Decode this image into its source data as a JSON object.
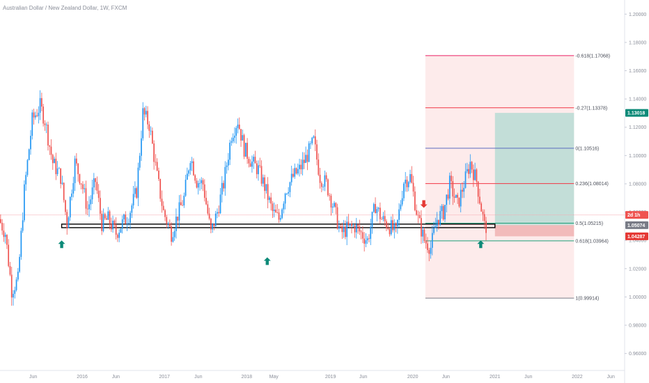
{
  "header": {
    "symbol_title": "Australian Dollar / New Zealand Dollar, 1W, FXCM"
  },
  "colors": {
    "up": "#2196f3",
    "down": "#ef5350",
    "fib_zone": "#fce4e4",
    "profit_zone": "#b9dcd5",
    "loss_zone": "#f0b3b3",
    "arrow_up": "#0d8a78",
    "arrow_down": "#e53935",
    "last_price_badge": "#0d8a78",
    "countdown_badge": "#ef5350",
    "entry_badge": "#787b86",
    "stop_badge": "#e53935",
    "price_line": "#f6a8ae"
  },
  "chart_data": {
    "type": "candlestick",
    "ylim": [
      0.948,
      1.21
    ],
    "xlim": [
      "2015-01-05",
      "2022-08-01"
    ],
    "y_ticks": [
      "1.20000",
      "1.18000",
      "1.16000",
      "1.14000",
      "1.12000",
      "1.10000",
      "1.08000",
      "1.06000",
      "1.04000",
      "1.02000",
      "1.00000",
      "0.98000",
      "0.96000"
    ],
    "y_tick_values": [
      1.2,
      1.18,
      1.16,
      1.14,
      1.12,
      1.1,
      1.08,
      1.06,
      1.04,
      1.02,
      1.0,
      0.98,
      0.96
    ],
    "x_ticks": [
      {
        "label": "Jun",
        "date": "2015-06-01"
      },
      {
        "label": "2016",
        "date": "2016-01-04"
      },
      {
        "label": "Jun",
        "date": "2016-06-01"
      },
      {
        "label": "2017",
        "date": "2017-01-02"
      },
      {
        "label": "Jun",
        "date": "2017-06-01"
      },
      {
        "label": "2018",
        "date": "2018-01-01"
      },
      {
        "label": "May",
        "date": "2018-05-01"
      },
      {
        "label": "2019",
        "date": "2019-01-07"
      },
      {
        "label": "Jun",
        "date": "2019-06-01"
      },
      {
        "label": "2020",
        "date": "2020-01-06"
      },
      {
        "label": "Jun",
        "date": "2020-06-01"
      },
      {
        "label": "2021",
        "date": "2021-01-04"
      },
      {
        "label": "Jun",
        "date": "2021-06-01"
      },
      {
        "label": "2022",
        "date": "2022-01-03"
      },
      {
        "label": "Jun",
        "date": "2022-06-01"
      }
    ],
    "candle_week_start": "2015-01-05",
    "candle_week_end": "2020-11-23",
    "close_path": [
      [
        "2015-01-05",
        1.055
      ],
      [
        "2015-02-02",
        1.045
      ],
      [
        "2015-03-02",
        1.005
      ],
      [
        "2015-03-30",
        1.012
      ],
      [
        "2015-04-27",
        1.075
      ],
      [
        "2015-06-01",
        1.125
      ],
      [
        "2015-07-06",
        1.135
      ],
      [
        "2015-07-27",
        1.125
      ],
      [
        "2015-08-31",
        1.095
      ],
      [
        "2015-10-05",
        1.085
      ],
      [
        "2015-11-02",
        1.052
      ],
      [
        "2015-12-07",
        1.095
      ],
      [
        "2016-01-04",
        1.082
      ],
      [
        "2016-02-01",
        1.062
      ],
      [
        "2016-03-07",
        1.082
      ],
      [
        "2016-04-04",
        1.052
      ],
      [
        "2016-05-02",
        1.055
      ],
      [
        "2016-06-06",
        1.045
      ],
      [
        "2016-07-04",
        1.052
      ],
      [
        "2016-08-01",
        1.058
      ],
      [
        "2016-09-05",
        1.075
      ],
      [
        "2016-10-03",
        1.13
      ],
      [
        "2016-10-31",
        1.122
      ],
      [
        "2016-12-05",
        1.085
      ],
      [
        "2017-01-02",
        1.06
      ],
      [
        "2017-02-06",
        1.045
      ],
      [
        "2017-03-06",
        1.058
      ],
      [
        "2017-04-03",
        1.07
      ],
      [
        "2017-05-01",
        1.1
      ],
      [
        "2017-05-29",
        1.082
      ],
      [
        "2017-06-26",
        1.08
      ],
      [
        "2017-07-31",
        1.045
      ],
      [
        "2017-08-28",
        1.06
      ],
      [
        "2017-09-25",
        1.08
      ],
      [
        "2017-10-30",
        1.115
      ],
      [
        "2017-11-27",
        1.125
      ],
      [
        "2017-12-25",
        1.105
      ],
      [
        "2018-01-29",
        1.095
      ],
      [
        "2018-02-26",
        1.09
      ],
      [
        "2018-03-26",
        1.078
      ],
      [
        "2018-04-30",
        1.06
      ],
      [
        "2018-05-28",
        1.055
      ],
      [
        "2018-06-25",
        1.075
      ],
      [
        "2018-07-30",
        1.085
      ],
      [
        "2018-08-27",
        1.09
      ],
      [
        "2018-09-24",
        1.098
      ],
      [
        "2018-10-29",
        1.11
      ],
      [
        "2018-11-26",
        1.085
      ],
      [
        "2018-12-24",
        1.08
      ],
      [
        "2019-01-28",
        1.062
      ],
      [
        "2019-02-25",
        1.045
      ],
      [
        "2019-03-25",
        1.048
      ],
      [
        "2019-04-29",
        1.05
      ],
      [
        "2019-05-27",
        1.045
      ],
      [
        "2019-06-24",
        1.04
      ],
      [
        "2019-07-29",
        1.065
      ],
      [
        "2019-08-26",
        1.055
      ],
      [
        "2019-09-30",
        1.05
      ],
      [
        "2019-10-28",
        1.045
      ],
      [
        "2019-12-02",
        1.082
      ],
      [
        "2019-12-30",
        1.085
      ],
      [
        "2020-02-03",
        1.055
      ],
      [
        "2020-03-02",
        1.04
      ],
      [
        "2020-03-30",
        1.035
      ],
      [
        "2020-04-27",
        1.055
      ],
      [
        "2020-05-25",
        1.06
      ],
      [
        "2020-06-22",
        1.08
      ],
      [
        "2020-07-27",
        1.065
      ],
      [
        "2020-08-24",
        1.08
      ],
      [
        "2020-09-21",
        1.095
      ],
      [
        "2020-10-19",
        1.082
      ],
      [
        "2020-11-23",
        1.05
      ]
    ],
    "support_zone": {
      "from": "2015-10-05",
      "to": "2021-01-04",
      "top": 1.0515,
      "bottom": 1.049
    },
    "fibonacci": {
      "from": "2020-03-02",
      "to": "2021-12-20",
      "levels": [
        {
          "ratio": -0.618,
          "price": 1.17068,
          "label": "-0.618(1.17068)",
          "color": "#e91e63"
        },
        {
          "ratio": -0.27,
          "price": 1.13378,
          "label": "-0.27(1.13378)",
          "color": "#f23645"
        },
        {
          "ratio": 0,
          "price": 1.10516,
          "label": "0(1.10516)",
          "color": "#5b6bbf"
        },
        {
          "ratio": 0.236,
          "price": 1.08014,
          "label": "0.236(1.08014)",
          "color": "#f23645"
        },
        {
          "ratio": 0.5,
          "price": 1.05215,
          "label": "0.5(1.05215)",
          "color": "#1b9e77"
        },
        {
          "ratio": 0.618,
          "price": 1.03964,
          "label": "0.618(1.03964)",
          "color": "#1b9e77"
        },
        {
          "ratio": 1,
          "price": 0.99914,
          "label": "1(0.99914)",
          "color": "#787b86"
        }
      ]
    },
    "position": {
      "from": "2021-01-04",
      "to": "2021-12-20",
      "target": 1.13018,
      "entry": 1.05074,
      "stop": 1.04287
    },
    "arrows": [
      {
        "direction": "up",
        "date": "2015-10-05",
        "price": 1.04
      },
      {
        "direction": "up",
        "date": "2018-04-02",
        "price": 1.028
      },
      {
        "direction": "down",
        "date": "2020-02-24",
        "price": 1.063
      },
      {
        "direction": "up",
        "date": "2020-11-02",
        "price": 1.04
      }
    ],
    "price_line": 1.058,
    "price_badges": [
      {
        "label": "1.13018",
        "price": 1.13018,
        "kind": "last"
      },
      {
        "label": "2d 1h",
        "price": 1.058,
        "kind": "countdown"
      },
      {
        "label": "1.05074",
        "price": 1.05074,
        "kind": "entry"
      },
      {
        "label": "1.04287",
        "price": 1.04287,
        "kind": "stop"
      }
    ]
  }
}
